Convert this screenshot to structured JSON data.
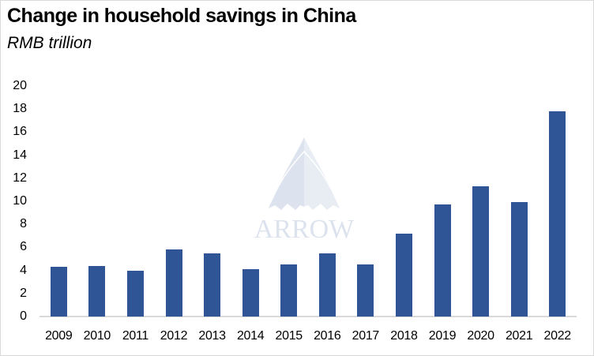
{
  "header": {
    "title": "Change in household savings in China",
    "subtitle": "RMB trillion"
  },
  "watermark": {
    "text": "ARROW",
    "icon": "arrow-sail-logo-icon"
  },
  "colors": {
    "bar": "#2f5597",
    "axis": "#d9d9d9",
    "watermark": "#dce3ee"
  },
  "chart_data": {
    "type": "bar",
    "title": "Change in household savings in China",
    "subtitle": "RMB trillion",
    "xlabel": "",
    "ylabel": "RMB trillion",
    "ylim": [
      0,
      20
    ],
    "yticks": [
      0,
      2,
      4,
      6,
      8,
      10,
      12,
      14,
      16,
      18,
      20
    ],
    "grid": false,
    "legend": null,
    "categories": [
      "2009",
      "2010",
      "2011",
      "2012",
      "2013",
      "2014",
      "2015",
      "2016",
      "2017",
      "2018",
      "2019",
      "2020",
      "2021",
      "2022"
    ],
    "values": [
      4.3,
      4.35,
      4.0,
      5.8,
      5.5,
      4.1,
      4.5,
      5.5,
      4.5,
      7.2,
      9.7,
      11.3,
      9.9,
      17.8
    ]
  }
}
